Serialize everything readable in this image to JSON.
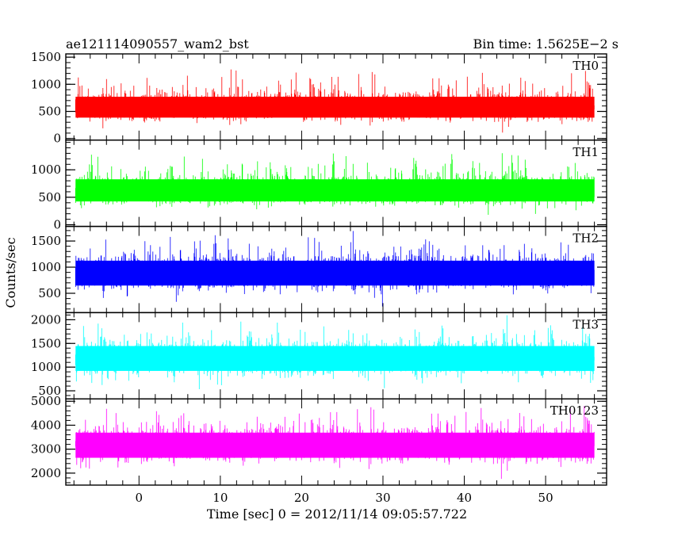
{
  "chart_data": {
    "type": "line",
    "title": "ae121114090557_wam2_bst",
    "subtitle": "Bin time: 1.5625E−2 s",
    "xlabel": "Time [sec] 0 = 2012/11/14 09:05:57.722",
    "ylabel": "Counts/sec",
    "xlim": [
      -9,
      57.5
    ],
    "x_ticks": [
      0,
      10,
      20,
      30,
      40,
      50
    ],
    "x_tick_labels": [
      "0",
      "10",
      "20",
      "30",
      "40",
      "50"
    ],
    "data_x_range": [
      -7.8,
      56
    ],
    "grid": false,
    "panels": [
      {
        "name": "TH0",
        "color": "#ff0000",
        "ylim": [
          -30,
          1560
        ],
        "y_ticks": [
          0,
          500,
          1000,
          1500
        ],
        "mean": 560,
        "low": 60,
        "high": 1560
      },
      {
        "name": "TH1",
        "color": "#00ff00",
        "ylim": [
          -30,
          1540
        ],
        "y_ticks": [
          0,
          500,
          1000
        ],
        "mean": 620,
        "low": 60,
        "high": 1540
      },
      {
        "name": "TH2",
        "color": "#0000ff",
        "ylim": [
          130,
          1780
        ],
        "y_ticks": [
          500,
          1000,
          1500
        ],
        "mean": 900,
        "low": 180,
        "high": 1780
      },
      {
        "name": "TH3",
        "color": "#00ffff",
        "ylim": [
          330,
          2150
        ],
        "y_ticks": [
          500,
          1000,
          1500,
          2000
        ],
        "mean": 1200,
        "low": 400,
        "high": 2150
      },
      {
        "name": "TH0123",
        "color": "#ff00ff",
        "ylim": [
          1500,
          5100
        ],
        "y_ticks": [
          2000,
          3000,
          4000,
          5000
        ],
        "mean": 3200,
        "low": 1600,
        "high": 5100
      }
    ]
  }
}
